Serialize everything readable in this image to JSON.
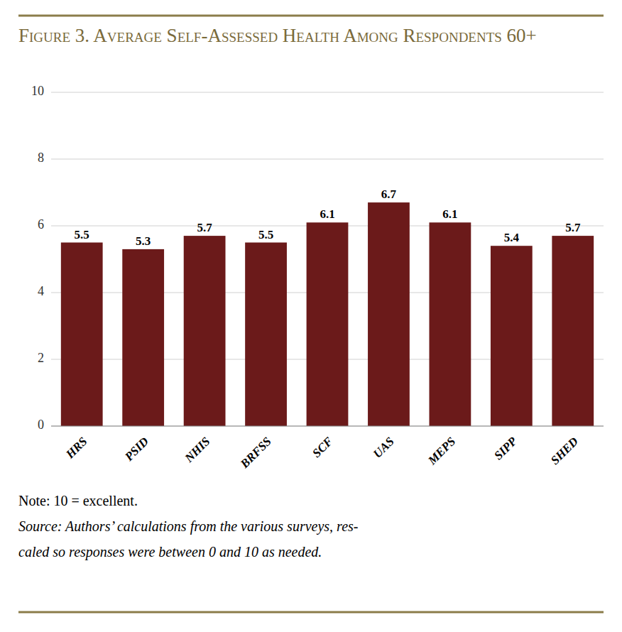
{
  "chart_data": {
    "type": "bar",
    "title": "Figure 3. Average Self-Assessed Health Among Respondents 60+",
    "categories": [
      "HRS",
      "PSID",
      "NHIS",
      "BRFSS",
      "SCF",
      "UAS",
      "MEPS",
      "SIPP",
      "SHED"
    ],
    "values": [
      5.5,
      5.3,
      5.7,
      5.5,
      6.1,
      6.7,
      6.1,
      5.4,
      5.7
    ],
    "color": "#6B1A1A",
    "ylim": [
      0,
      10
    ],
    "yticks": [
      0,
      2,
      4,
      6,
      8,
      10
    ],
    "grid": true,
    "data_labels": true,
    "annotations": [
      "Note: 10 = excellent.",
      "Source: Authors’ calculations from the various surveys, res-",
      "caled so responses were between 0 and 10 as needed."
    ]
  }
}
